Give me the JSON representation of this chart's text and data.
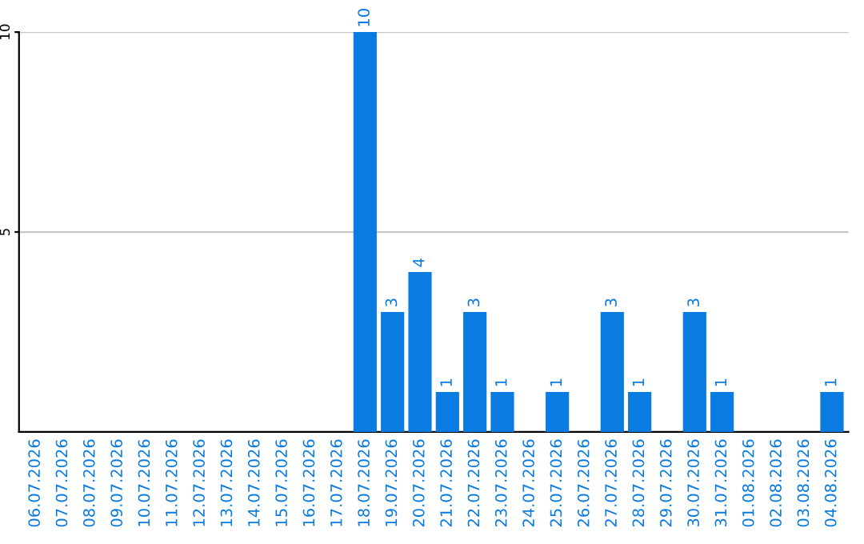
{
  "chart_data": {
    "type": "bar",
    "categories": [
      "06.07.2026",
      "07.07.2026",
      "08.07.2026",
      "09.07.2026",
      "10.07.2026",
      "11.07.2026",
      "12.07.2026",
      "13.07.2026",
      "14.07.2026",
      "15.07.2026",
      "16.07.2026",
      "17.07.2026",
      "18.07.2026",
      "19.07.2026",
      "20.07.2026",
      "21.07.2026",
      "22.07.2026",
      "23.07.2026",
      "24.07.2026",
      "25.07.2026",
      "26.07.2026",
      "27.07.2026",
      "28.07.2026",
      "29.07.2026",
      "30.07.2026",
      "31.07.2026",
      "01.08.2026",
      "02.08.2026",
      "03.08.2026",
      "04.08.2026"
    ],
    "values": [
      0,
      0,
      0,
      0,
      0,
      0,
      0,
      0,
      0,
      0,
      0,
      0,
      10,
      3,
      4,
      1,
      3,
      1,
      0,
      1,
      0,
      3,
      1,
      0,
      3,
      1,
      0,
      0,
      0,
      1
    ],
    "value_labels": [
      null,
      null,
      null,
      null,
      null,
      null,
      null,
      null,
      null,
      null,
      null,
      null,
      "10",
      "3",
      "4",
      "1",
      "3",
      "1",
      null,
      "1",
      null,
      "3",
      "1",
      null,
      "3",
      "1",
      null,
      null,
      null,
      "1"
    ],
    "color": "#0a7be0",
    "ylim": [
      0,
      10
    ],
    "yticks": [
      5,
      10
    ],
    "grid": "y"
  }
}
